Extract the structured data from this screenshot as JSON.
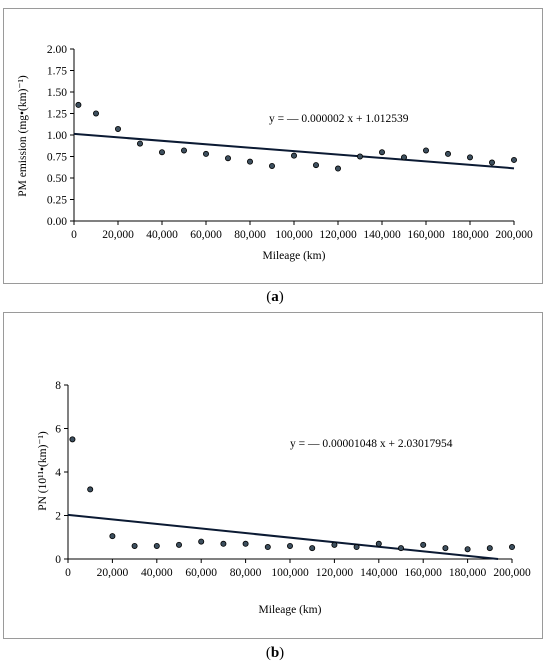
{
  "chart_data": [
    {
      "type": "scatter",
      "panel_label": "a",
      "title": "",
      "ylabel": "PM emission  (mg•(km)⁻¹)",
      "xlabel": "Mileage  (km)",
      "ylim": [
        0,
        2.0
      ],
      "xlim": [
        0,
        200000
      ],
      "yticks": [
        0.0,
        0.25,
        0.5,
        0.75,
        1.0,
        1.25,
        1.5,
        1.75,
        2.0
      ],
      "ytick_labels": [
        "0.00",
        "0.25",
        "0.50",
        "0.75",
        "1.00",
        "1.25",
        "1.50",
        "1.75",
        "2.00"
      ],
      "xticks": [
        0,
        20000,
        40000,
        60000,
        80000,
        100000,
        120000,
        140000,
        160000,
        180000,
        200000
      ],
      "xtick_labels": [
        "0",
        "20,000",
        "40,000",
        "60,000",
        "80,000",
        "100,000",
        "120,000",
        "140,000",
        "160,000",
        "180,000",
        "200,000"
      ],
      "x": [
        2000,
        10000,
        20000,
        30000,
        40000,
        50000,
        60000,
        70000,
        80000,
        90000,
        100000,
        110000,
        120000,
        130000,
        140000,
        150000,
        160000,
        170000,
        180000,
        190000,
        200000
      ],
      "y": [
        1.35,
        1.25,
        1.07,
        0.9,
        0.8,
        0.82,
        0.78,
        0.73,
        0.69,
        0.64,
        0.76,
        0.65,
        0.61,
        0.75,
        0.8,
        0.74,
        0.82,
        0.78,
        0.74,
        0.68,
        0.71
      ],
      "trendline": {
        "slope": -2e-06,
        "intercept": 1.012539
      },
      "equation_text": "y = — 0.000002 x + 1.012539"
    },
    {
      "type": "scatter",
      "panel_label": "b",
      "title": "",
      "ylabel": "PN (10¹¹•(km)⁻¹)",
      "xlabel": "Mileage  (km)",
      "ylim": [
        0,
        8
      ],
      "xlim": [
        0,
        200000
      ],
      "yticks": [
        0,
        2,
        4,
        6,
        8
      ],
      "ytick_labels": [
        "0",
        "2",
        "4",
        "6",
        "8"
      ],
      "xticks": [
        0,
        20000,
        40000,
        60000,
        80000,
        100000,
        120000,
        140000,
        160000,
        180000,
        200000
      ],
      "xtick_labels": [
        "0",
        "20,000",
        "40,000",
        "60,000",
        "80,000",
        "100,000",
        "120,000",
        "140,000",
        "160,000",
        "180,000",
        "200,000"
      ],
      "x": [
        2000,
        10000,
        20000,
        30000,
        40000,
        50000,
        60000,
        70000,
        80000,
        90000,
        100000,
        110000,
        120000,
        130000,
        140000,
        150000,
        160000,
        170000,
        180000,
        190000,
        200000
      ],
      "y": [
        5.5,
        3.2,
        1.05,
        0.6,
        0.6,
        0.65,
        0.8,
        0.7,
        0.7,
        0.55,
        0.6,
        0.5,
        0.65,
        0.55,
        0.7,
        0.5,
        0.65,
        0.5,
        0.45,
        0.5,
        0.55
      ],
      "trendline": {
        "slope": -1.048e-05,
        "intercept": 2.03017954
      },
      "equation_text": "y = — 0.00001048 x + 2.03017954"
    }
  ],
  "captions": [
    "(a)",
    "(b)"
  ],
  "caption_letters": [
    "a",
    "b"
  ],
  "colors": {
    "marker_fill": "#3d4f5e",
    "marker_stroke": "#000000",
    "line": "#0b1a33",
    "axis": "#000000"
  }
}
